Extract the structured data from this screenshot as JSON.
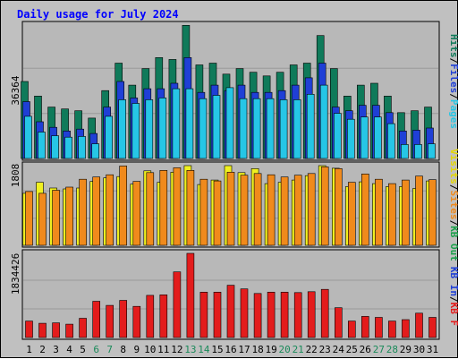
{
  "title": "Daily usage for July 2024",
  "colors": {
    "background": "#c0c0c0",
    "plot_bg": "#b8b8b8",
    "hits": "#0f7a5a",
    "files": "#1f3fd6",
    "pages": "#26c6e6",
    "visits": "#f0f020",
    "sites": "#f08a1c",
    "kbytes": "#e31c1c",
    "weekend_label": "#1a8a5a",
    "weekday_label": "#000000",
    "title": "#0000ff"
  },
  "panels": {
    "top": {
      "ymax_label": "36364",
      "legend": [
        "Hits",
        "/",
        "Files",
        "/",
        "Pages"
      ]
    },
    "middle": {
      "ymax_label": "1808",
      "legend": [
        "Visits",
        "/",
        "Sites",
        "/",
        "KB Out"
      ]
    },
    "bottom": {
      "ymax_label": "1834426",
      "legend": [
        "KB In",
        "/",
        "KB F"
      ]
    }
  },
  "chart_data": {
    "type": "bar",
    "title": "Daily usage for July 2024",
    "days": [
      "1",
      "2",
      "3",
      "4",
      "5",
      "6",
      "7",
      "8",
      "9",
      "10",
      "11",
      "12",
      "13",
      "14",
      "15",
      "16",
      "17",
      "18",
      "19",
      "20",
      "21",
      "22",
      "23",
      "24",
      "25",
      "26",
      "27",
      "28",
      "29",
      "30",
      "31"
    ],
    "weekend_days": [
      "6",
      "7",
      "13",
      "14",
      "20",
      "21",
      "27",
      "28"
    ],
    "hits": [
      21000,
      17000,
      14000,
      13500,
      13000,
      11000,
      18500,
      26000,
      20000,
      24500,
      27500,
      27000,
      36300,
      25500,
      26000,
      23000,
      24500,
      23500,
      22500,
      23500,
      25500,
      26000,
      33500,
      24500,
      17000,
      20000,
      20500,
      17000,
      12500,
      13000,
      14000
    ],
    "files": [
      15500,
      10000,
      8500,
      7500,
      8000,
      6800,
      14000,
      21000,
      16500,
      19000,
      19000,
      20500,
      27500,
      18000,
      20000,
      18500,
      20000,
      18000,
      18000,
      18500,
      20000,
      22000,
      26000,
      14000,
      13000,
      14500,
      14500,
      12500,
      7500,
      7700,
      8300
    ],
    "pages": [
      11500,
      7200,
      6200,
      5800,
      6000,
      4000,
      11500,
      16000,
      15000,
      16000,
      16500,
      19000,
      19000,
      16300,
      17200,
      19300,
      16300,
      16300,
      16300,
      16000,
      16000,
      17500,
      20000,
      12300,
      10700,
      11300,
      11300,
      9500,
      3800,
      3800,
      4000
    ],
    "visits": [
      1180,
      1430,
      1300,
      1280,
      1300,
      1450,
      1530,
      1560,
      1390,
      1690,
      1430,
      1660,
      1808,
      1380,
      1480,
      1808,
      1650,
      1740,
      1400,
      1430,
      1480,
      1580,
      1808,
      1750,
      1330,
      1440,
      1400,
      1330,
      1330,
      1290,
      1460
    ],
    "sites": [
      1220,
      1180,
      1250,
      1320,
      1500,
      1550,
      1600,
      1800,
      1450,
      1650,
      1700,
      1760,
      1700,
      1500,
      1460,
      1660,
      1590,
      1630,
      1600,
      1550,
      1590,
      1630,
      1780,
      1740,
      1430,
      1620,
      1500,
      1400,
      1480,
      1570,
      1490
    ],
    "kbytes": [
      360000,
      310000,
      320000,
      290000,
      420000,
      790000,
      700000,
      810000,
      680000,
      920000,
      930000,
      1430000,
      1834426,
      990000,
      990000,
      1140000,
      1060000,
      960000,
      990000,
      990000,
      980000,
      1000000,
      1050000,
      650000,
      360000,
      460000,
      440000,
      360000,
      390000,
      530000,
      440000
    ],
    "ymax": {
      "top": 36364,
      "middle": 1808,
      "bottom": 1834426
    }
  }
}
